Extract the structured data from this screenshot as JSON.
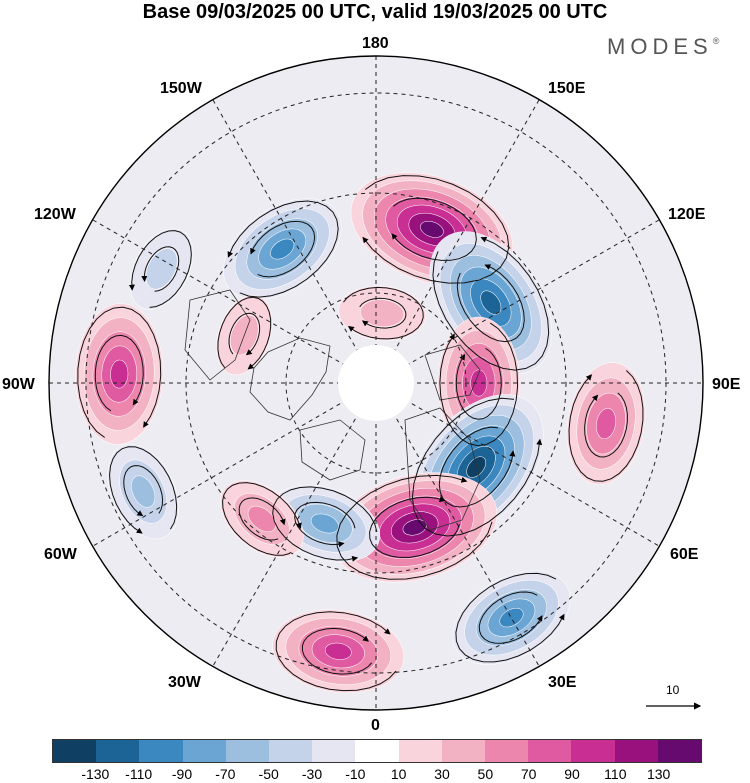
{
  "title": "Base 09/03/2025 00 UTC, valid 19/03/2025 00 UTC",
  "logo": "MODES",
  "logo_mark": "®",
  "longitude_labels": {
    "top": "180",
    "top_left": "150W",
    "top_right": "150E",
    "upper_left": "120W",
    "upper_right": "120E",
    "left": "90W",
    "right": "90E",
    "lower_left": "60W",
    "lower_right": "60E",
    "bottom_left": "30W",
    "bottom_right": "30E",
    "bottom": "0"
  },
  "reference_vector_label": "10",
  "colorbar": {
    "colors": [
      "#0f3f63",
      "#1d6496",
      "#3b87c0",
      "#6aa5d3",
      "#9cbfe0",
      "#c4d2ea",
      "#e6e6f2",
      "#ffffff",
      "#f9d4dc",
      "#f3b2c3",
      "#ec86ad",
      "#e05aa1",
      "#c92e93",
      "#99117d",
      "#660a70"
    ],
    "tick_labels": [
      "-130",
      "-110",
      "-90",
      "-70",
      "-50",
      "-30",
      "-10",
      "10",
      "30",
      "50",
      "70",
      "90",
      "110",
      "130"
    ]
  },
  "anomaly_centers": [
    {
      "lon": 160,
      "lat": 55,
      "value": 120
    },
    {
      "lon": 125,
      "lat": 60,
      "value": -110
    },
    {
      "lon": 90,
      "lat": 68,
      "value": 80
    },
    {
      "lon": 80,
      "lat": 40,
      "value": 70
    },
    {
      "lon": 50,
      "lat": 62,
      "value": -120
    },
    {
      "lon": 15,
      "lat": 58,
      "value": 120
    },
    {
      "lon": 30,
      "lat": 32,
      "value": -75
    },
    {
      "lon": -8,
      "lat": 32,
      "value": 80
    },
    {
      "lon": -20,
      "lat": 58,
      "value": -60
    },
    {
      "lon": -40,
      "lat": 52,
      "value": 40
    },
    {
      "lon": -65,
      "lat": 35,
      "value": -45
    },
    {
      "lon": -92,
      "lat": 35,
      "value": 90
    },
    {
      "lon": -118,
      "lat": 38,
      "value": -30
    },
    {
      "lon": -145,
      "lat": 55,
      "value": -80
    },
    {
      "lon": -110,
      "lat": 60,
      "value": 25
    },
    {
      "lon": 175,
      "lat": 75,
      "value": 30
    }
  ]
}
